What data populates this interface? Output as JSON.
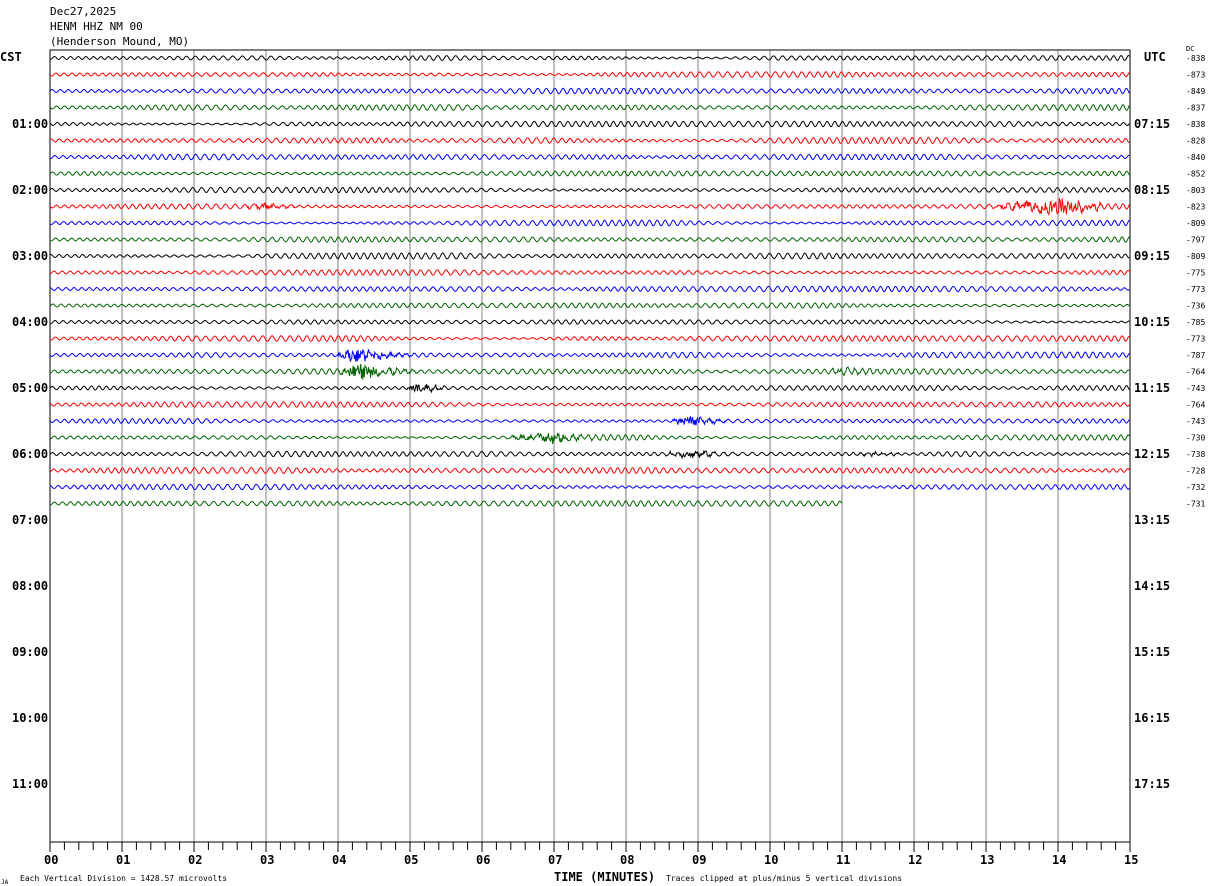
{
  "header": {
    "date": "Dec27,2025",
    "station": "HENM HHZ NM 00",
    "location": "(Henderson Mound, MO)"
  },
  "chart_data": {
    "type": "line",
    "subtype": "helicorder",
    "left_axis_title": "CST",
    "right_axis_title": "UTC",
    "dc_title": "DC",
    "xlabel": "TIME (MINUTES)",
    "x_ticks": [
      "00",
      "01",
      "02",
      "03",
      "04",
      "05",
      "06",
      "07",
      "08",
      "09",
      "10",
      "11",
      "12",
      "13",
      "14",
      "15"
    ],
    "xlim": [
      0,
      15
    ],
    "cst_labels": [
      "01:00",
      "02:00",
      "03:00",
      "04:00",
      "05:00",
      "06:00",
      "07:00",
      "08:00",
      "09:00",
      "10:00",
      "11:00"
    ],
    "utc_labels": [
      "07:15",
      "08:15",
      "09:15",
      "10:15",
      "11:15",
      "12:15",
      "13:15",
      "14:15",
      "15:15",
      "16:15",
      "17:15"
    ],
    "trace_colors": [
      "#000000",
      "#ff0000",
      "#0000ff",
      "#006400"
    ],
    "dc_offsets": [
      "-838",
      "-873",
      "-849",
      "-837",
      "-838",
      "-828",
      "-840",
      "-852",
      "-803",
      "-823",
      "-809",
      "-797",
      "-809",
      "-775",
      "-773",
      "-736",
      "-785",
      "-773",
      "-787",
      "-764",
      "-743",
      "-764",
      "-743",
      "-730",
      "-738",
      "-728",
      "-732",
      "-731"
    ],
    "last_trace_end_minute": 11,
    "events": [
      {
        "trace": 9,
        "minute_start": 13.0,
        "minute_end": 14.6,
        "peak_minute": 14.1,
        "amplitude": 3.0
      },
      {
        "trace": 9,
        "minute_start": 2.6,
        "minute_end": 3.4,
        "peak_minute": 3.0,
        "amplitude": 0.8
      },
      {
        "trace": 18,
        "minute_start": 3.9,
        "minute_end": 5.8,
        "peak_minute": 4.3,
        "amplitude": 2.5
      },
      {
        "trace": 19,
        "minute_start": 4.0,
        "minute_end": 5.2,
        "peak_minute": 4.3,
        "amplitude": 3.0
      },
      {
        "trace": 19,
        "minute_start": 10.8,
        "minute_end": 11.6,
        "peak_minute": 11.0,
        "amplitude": 1.0
      },
      {
        "trace": 20,
        "minute_start": 4.9,
        "minute_end": 5.5,
        "peak_minute": 5.1,
        "amplitude": 1.5
      },
      {
        "trace": 22,
        "minute_start": 8.6,
        "minute_end": 9.4,
        "peak_minute": 8.85,
        "amplitude": 1.6
      },
      {
        "trace": 23,
        "minute_start": 6.3,
        "minute_end": 8.0,
        "peak_minute": 7.0,
        "amplitude": 1.6
      },
      {
        "trace": 24,
        "minute_start": 8.5,
        "minute_end": 9.6,
        "peak_minute": 8.9,
        "amplitude": 1.2
      },
      {
        "trace": 24,
        "minute_start": 11.0,
        "minute_end": 11.8,
        "peak_minute": 11.5,
        "amplitude": 0.5
      }
    ]
  },
  "footer": {
    "scale_note": "Each Vertical Division = 1428.57 microvolts",
    "clip_note": "Traces clipped at plus/minus 5 vertical divisions",
    "corner_mark": "JA"
  }
}
